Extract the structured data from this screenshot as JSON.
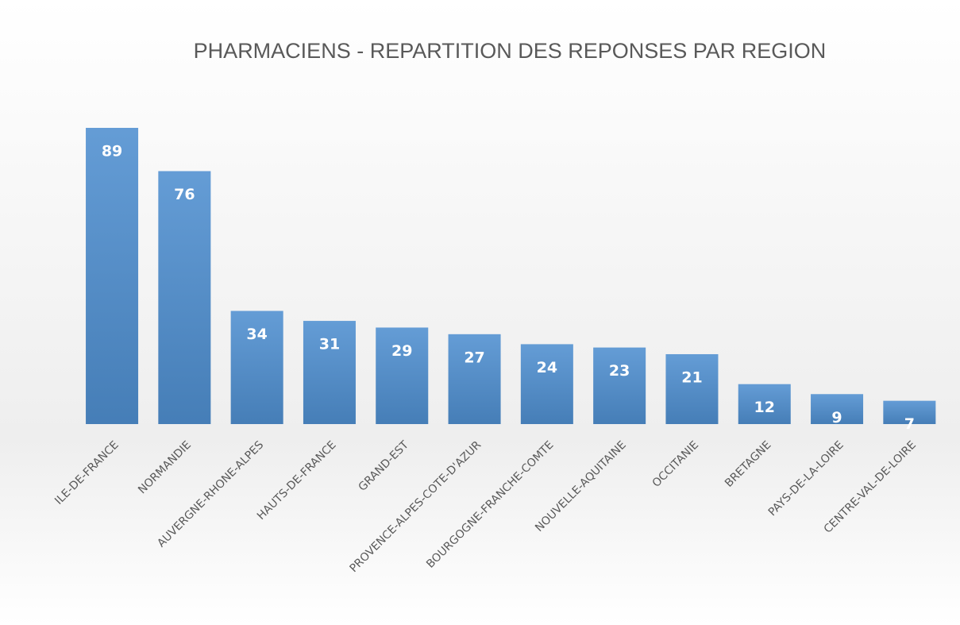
{
  "chart_data": {
    "type": "bar",
    "title": "PHARMACIENS - REPARTITION DES REPONSES PAR REGION",
    "categories": [
      "ILE-DE-FRANCE",
      "NORMANDIE",
      "AUVERGNE-RHONE-ALPES",
      "HAUTS-DE-FRANCE",
      "GRAND-EST",
      "PROVENCE-ALPES-COTE-D'AZUR",
      "BOURGOGNE-FRANCHE-COMTE",
      "NOUVELLE-AQUITAINE",
      "OCCITANIE",
      "BRETAGNE",
      "PAYS-DE-LA-LOIRE",
      "CENTRE-VAL-DE-LOIRE"
    ],
    "values": [
      89,
      76,
      34,
      31,
      29,
      27,
      24,
      23,
      21,
      12,
      9,
      7
    ],
    "color": "#4f8fd0"
  }
}
